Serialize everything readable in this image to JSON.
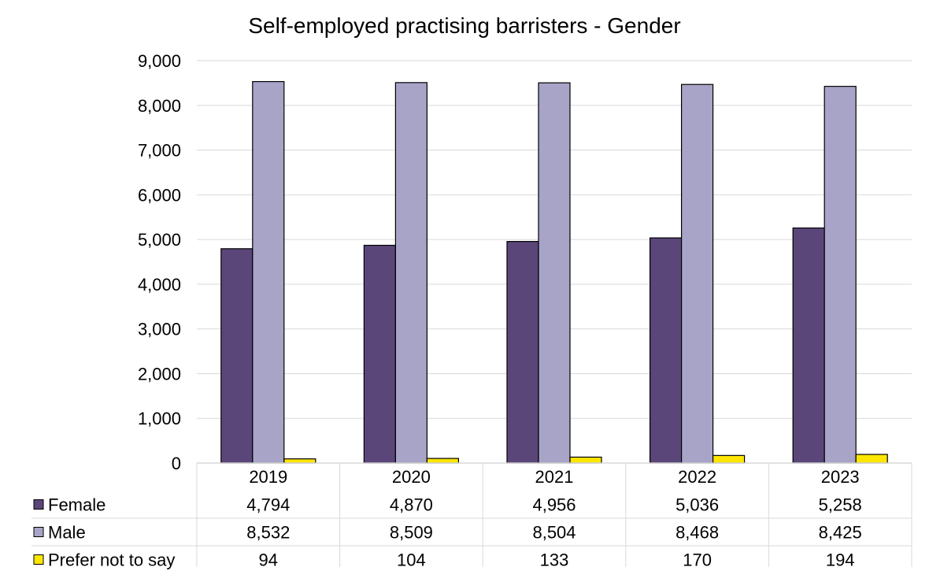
{
  "chart_data": {
    "type": "bar",
    "title": "Self-employed practising barristers - Gender",
    "xlabel": "",
    "ylabel": "",
    "categories": [
      "2019",
      "2020",
      "2021",
      "2022",
      "2023"
    ],
    "ylim": [
      0,
      9000
    ],
    "yticks": [
      "0",
      "1,000",
      "2,000",
      "3,000",
      "4,000",
      "5,000",
      "6,000",
      "7,000",
      "8,000",
      "9,000"
    ],
    "grid": true,
    "legend": "data-table-below",
    "series": [
      {
        "name": "Female",
        "color": "#5b467a",
        "values": [
          4794,
          4870,
          4956,
          5036,
          5258
        ],
        "labels": [
          "4,794",
          "4,870",
          "4,956",
          "5,036",
          "5,258"
        ]
      },
      {
        "name": "Male",
        "color": "#a7a4c8",
        "values": [
          8532,
          8509,
          8504,
          8468,
          8425
        ],
        "labels": [
          "8,532",
          "8,509",
          "8,504",
          "8,468",
          "8,425"
        ]
      },
      {
        "name": "Prefer not to say",
        "color": "#ffe600",
        "values": [
          94,
          104,
          133,
          170,
          194
        ],
        "labels": [
          "94",
          "104",
          "133",
          "170",
          "194"
        ]
      }
    ]
  }
}
